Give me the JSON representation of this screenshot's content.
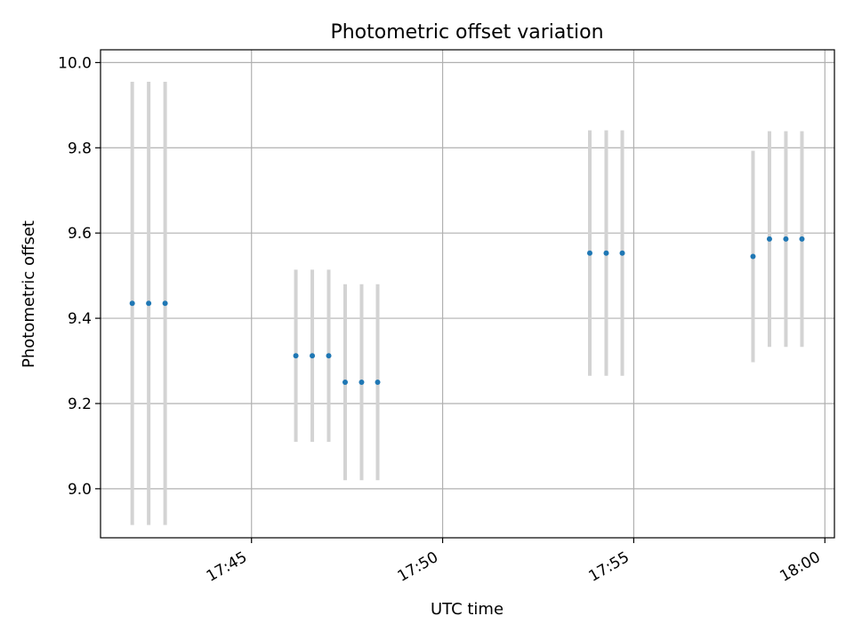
{
  "chart_data": {
    "type": "scatter",
    "title": "Photometric offset variation",
    "xlabel": "UTC time",
    "ylabel": "Photometric offset",
    "grid": true,
    "x_unit": "minutes after 17:00 UTC",
    "xlim": [
      41.05,
      60.25
    ],
    "ylim": [
      8.885,
      10.03
    ],
    "x_ticks": [
      {
        "value": 45,
        "label": "17:45"
      },
      {
        "value": 50,
        "label": "17:50"
      },
      {
        "value": 55,
        "label": "17:55"
      },
      {
        "value": 60,
        "label": "18:00"
      }
    ],
    "y_ticks": [
      {
        "value": 9.0,
        "label": "9.0"
      },
      {
        "value": 9.2,
        "label": "9.2"
      },
      {
        "value": 9.4,
        "label": "9.4"
      },
      {
        "value": 9.6,
        "label": "9.6"
      },
      {
        "value": 9.8,
        "label": "9.8"
      },
      {
        "value": 10.0,
        "label": "10.0"
      }
    ],
    "series": [
      {
        "name": "Photometric offset",
        "color": "#1f77b4",
        "error_color": "#d3d3d3",
        "points": [
          {
            "x": 41.88,
            "y": 9.435,
            "yerr": 0.52
          },
          {
            "x": 42.31,
            "y": 9.435,
            "yerr": 0.52
          },
          {
            "x": 42.74,
            "y": 9.435,
            "yerr": 0.52
          },
          {
            "x": 46.16,
            "y": 9.312,
            "yerr": 0.202
          },
          {
            "x": 46.59,
            "y": 9.312,
            "yerr": 0.202
          },
          {
            "x": 47.02,
            "y": 9.312,
            "yerr": 0.202
          },
          {
            "x": 47.45,
            "y": 9.25,
            "yerr": 0.23
          },
          {
            "x": 47.88,
            "y": 9.25,
            "yerr": 0.23
          },
          {
            "x": 48.3,
            "y": 9.25,
            "yerr": 0.23
          },
          {
            "x": 53.85,
            "y": 9.553,
            "yerr": 0.288
          },
          {
            "x": 54.28,
            "y": 9.553,
            "yerr": 0.288
          },
          {
            "x": 54.7,
            "y": 9.553,
            "yerr": 0.288
          },
          {
            "x": 58.12,
            "y": 9.545,
            "yerr": 0.248
          },
          {
            "x": 58.55,
            "y": 9.586,
            "yerr": 0.253
          },
          {
            "x": 58.98,
            "y": 9.586,
            "yerr": 0.253
          },
          {
            "x": 59.4,
            "y": 9.586,
            "yerr": 0.253
          }
        ]
      }
    ]
  }
}
